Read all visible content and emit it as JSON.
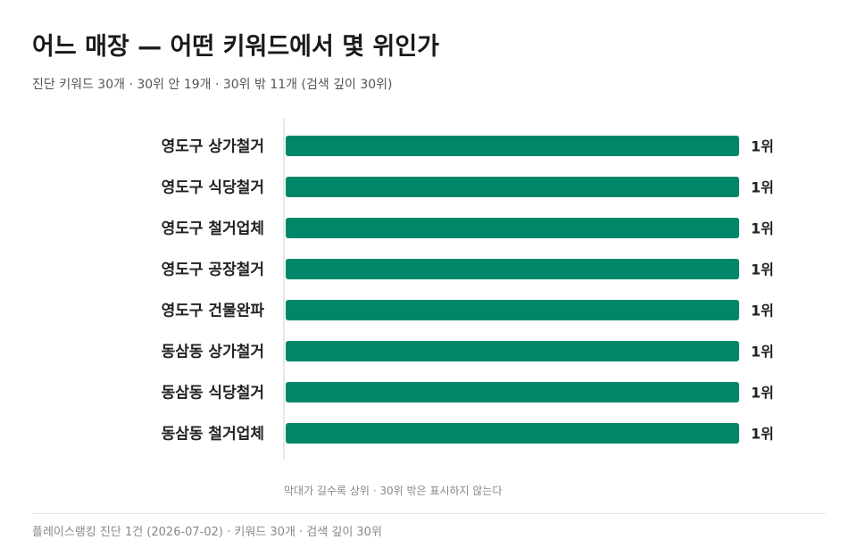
{
  "header": {
    "title": "어느 매장 — 어떤 키워드에서 몇 위인가",
    "subtitle": "진단 키워드 30개 · 30위 안 19개 · 30위 밖 11개 (검색 깊이 30위)"
  },
  "chart_data": {
    "type": "bar",
    "orientation": "horizontal",
    "categories": [
      "영도구 상가철거",
      "영도구 식당철거",
      "영도구 철거업체",
      "영도구 공장철거",
      "영도구 건물완파",
      "동삼동 상가철거",
      "동삼동 식당철거",
      "동삼동 철거업체"
    ],
    "values": [
      1,
      1,
      1,
      1,
      1,
      1,
      1,
      1
    ],
    "value_labels": [
      "1위",
      "1위",
      "1위",
      "1위",
      "1위",
      "1위",
      "1위",
      "1위"
    ],
    "max_rank": 30,
    "bar_color": "#00876a",
    "note": "막대가 길수록 상위 · 30위 밖은 표시하지 않는다"
  },
  "footer": {
    "text": "플레이스랭킹 진단 1건 (2026-07-02) · 키워드 30개 · 검색 깊이 30위"
  }
}
